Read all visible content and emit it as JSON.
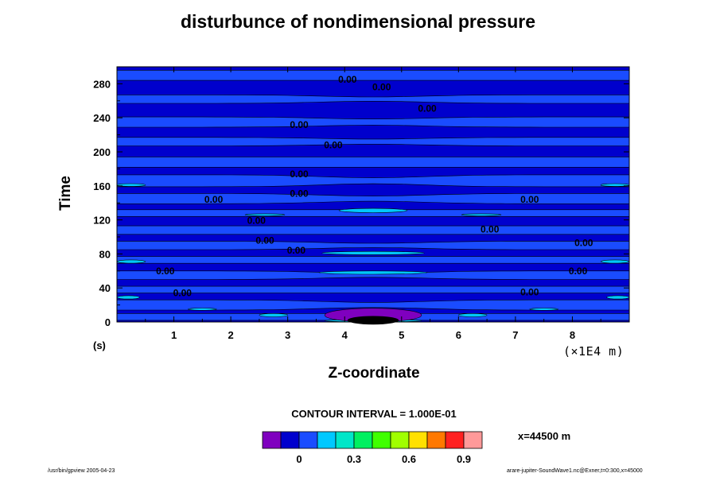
{
  "chart_data": {
    "type": "heatmap",
    "subtype": "filled-contour",
    "title": "disturbunce of nondimensional pressure",
    "xlabel": "Z-coordinate",
    "ylabel": "Time",
    "x_units": "(s)",
    "x_scale_label": "(×1E4 m)",
    "xlim": [
      0,
      9
    ],
    "ylim": [
      0,
      300
    ],
    "xticks": [
      1,
      2,
      3,
      4,
      5,
      6,
      7,
      8
    ],
    "xtick_labels": [
      "1",
      "2",
      "3",
      "4",
      "5",
      "6",
      "7",
      "8"
    ],
    "yticks": [
      0,
      40,
      80,
      120,
      160,
      200,
      240,
      280
    ],
    "ytick_labels": [
      "0",
      "40",
      "80",
      "120",
      "160",
      "200",
      "240",
      "280"
    ],
    "contour_interval_text": "CONTOUR INTERVAL = 1.000E-01",
    "colorbar": {
      "levels": [
        -0.2,
        -0.1,
        0.0,
        0.1,
        0.2,
        0.3,
        0.4,
        0.5,
        0.6,
        0.7,
        0.8,
        0.9,
        1.0
      ],
      "colors": [
        "#7f00bf",
        "#0000cd",
        "#1a4cff",
        "#00c8ff",
        "#00e6c8",
        "#00f060",
        "#40ff00",
        "#a0ff00",
        "#ffe000",
        "#ff7800",
        "#ff2020",
        "#ff9999"
      ],
      "tick_labels": [
        "0",
        "0.3",
        "0.6",
        "0.9"
      ],
      "tick_values": [
        0.0,
        0.3,
        0.6,
        0.9
      ]
    },
    "contour_labels": [
      {
        "text": "0.00",
        "x": 4.05,
        "y": 285
      },
      {
        "text": "0.00",
        "x": 4.65,
        "y": 276
      },
      {
        "text": "0.00",
        "x": 5.45,
        "y": 251
      },
      {
        "text": "0.00",
        "x": 3.2,
        "y": 232
      },
      {
        "text": "0.00",
        "x": 3.8,
        "y": 208
      },
      {
        "text": "0.00",
        "x": 3.2,
        "y": 174
      },
      {
        "text": "0.00",
        "x": 3.2,
        "y": 151
      },
      {
        "text": "0.00",
        "x": 1.7,
        "y": 144
      },
      {
        "text": "0.00",
        "x": 7.25,
        "y": 144
      },
      {
        "text": "0.00",
        "x": 2.45,
        "y": 119
      },
      {
        "text": "0.00",
        "x": 6.55,
        "y": 109
      },
      {
        "text": "0.00",
        "x": 2.6,
        "y": 96
      },
      {
        "text": "0.00",
        "x": 3.15,
        "y": 84
      },
      {
        "text": "0.00",
        "x": 8.2,
        "y": 93
      },
      {
        "text": "0.00",
        "x": 0.85,
        "y": 60
      },
      {
        "text": "0.00",
        "x": 8.1,
        "y": 60
      },
      {
        "text": "0.00",
        "x": 1.15,
        "y": 34
      },
      {
        "text": "0.00",
        "x": 7.25,
        "y": 35
      }
    ],
    "colors": {
      "background_level": "#0000cd",
      "band_level": "#1a4cff",
      "positive_level": "#00c8ff",
      "negative_level": "#7f00bf"
    }
  },
  "annotations": {
    "x_position": "x=44500 m",
    "footer_left": "/usr/bin/gpview 2005-04-23",
    "footer_right": "arare-jupiter-SoundWave1.nc@Exner,t=0:300,x=45000"
  }
}
